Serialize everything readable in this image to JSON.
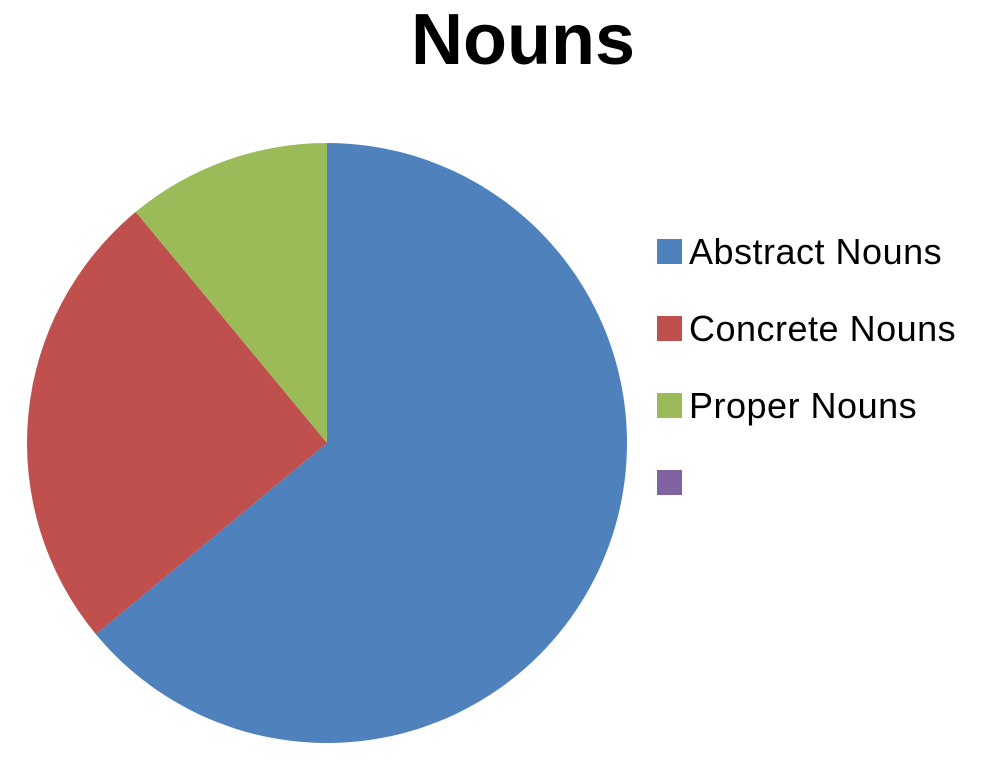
{
  "chart_data": {
    "type": "pie",
    "title": "Nouns",
    "slices": [
      {
        "label": "Abstract Nouns",
        "value": 64,
        "color": "#4F81BD"
      },
      {
        "label": "Concrete Nouns",
        "value": 25,
        "color": "#C0504D"
      },
      {
        "label": "Proper Nouns",
        "value": 11,
        "color": "#9BBB59"
      },
      {
        "label": "",
        "value": 0,
        "color": "#8064A2"
      }
    ],
    "values_unit": "percent",
    "start_angle_deg": 0,
    "direction": "clockwise",
    "legend_position": "right",
    "background_color": "#FFFFFF",
    "title_color": "#000000",
    "text_color": "#000000"
  }
}
